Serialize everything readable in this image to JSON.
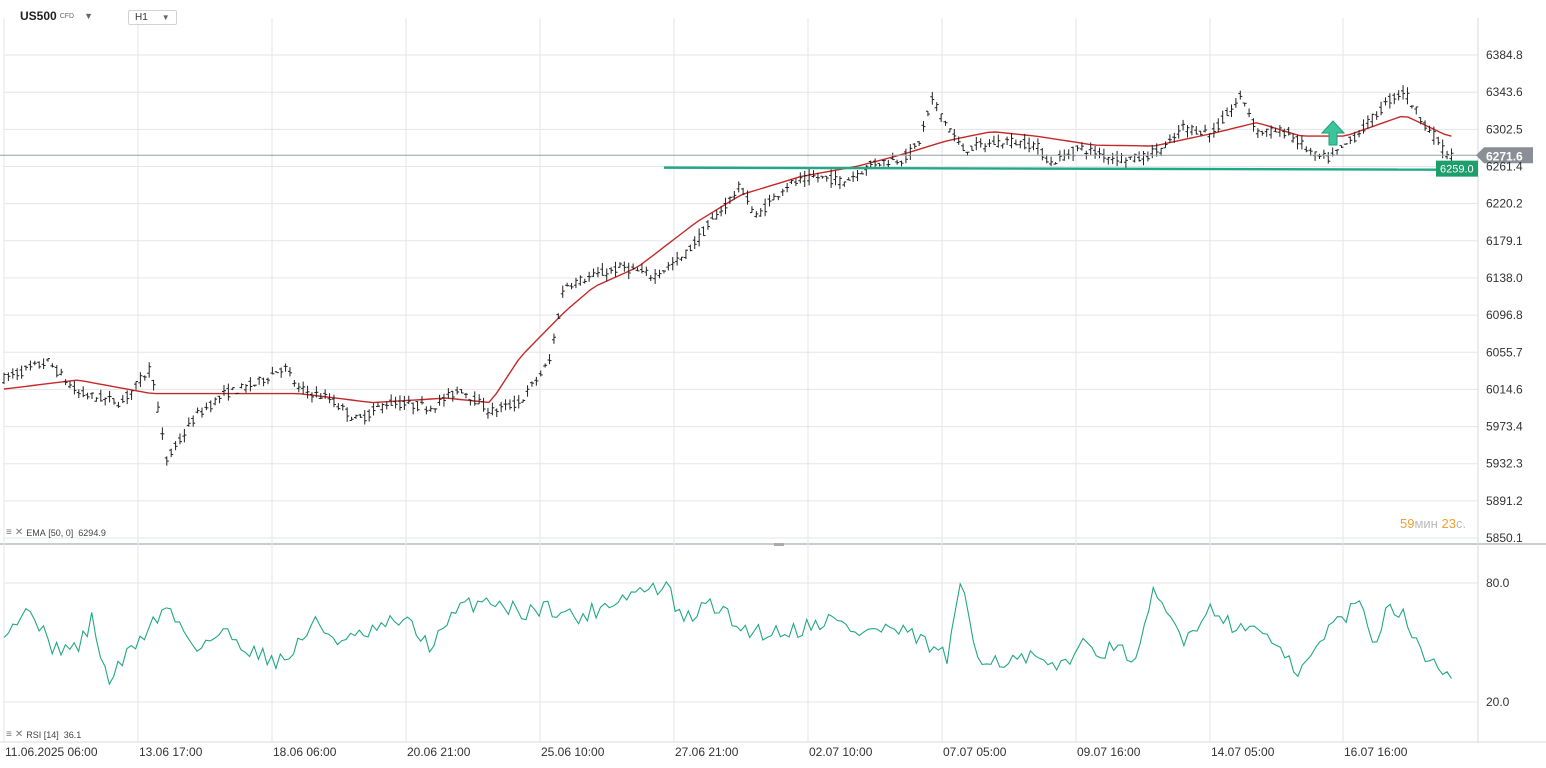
{
  "header": {
    "symbol": "US500",
    "symbol_suffix": "CFD",
    "timeframe": "H1"
  },
  "indicators": {
    "ema_label": "EMA",
    "ema_params": "[50, 0]",
    "ema_value": "6294.9",
    "rsi_label": "RSI",
    "rsi_params": "[14]",
    "rsi_value": "36.1"
  },
  "countdown": {
    "minutes": "59",
    "minutes_unit": "мин",
    "seconds": "23",
    "seconds_unit": "с."
  },
  "colors": {
    "candle": "#222222",
    "ema": "#c62828",
    "support": "#22a884",
    "rsi": "#22a884",
    "arrow": "#3cc49a",
    "grid": "#e3e6ea",
    "price_tag": "#8a8f96",
    "support_tag": "#1e9e6a"
  },
  "icons": {
    "up_arrow": "up-arrow-icon",
    "indicator": "indicator-settings-icon"
  },
  "chart_data": {
    "type": "candlestick",
    "y_ticks": [
      "6384.8",
      "6343.6",
      "6302.5",
      "6261.4",
      "6220.2",
      "6179.1",
      "6138.0",
      "6096.8",
      "6055.7",
      "6014.6",
      "5973.4",
      "5932.3",
      "5891.2",
      "5850.1"
    ],
    "x_ticks": [
      "11.06.2025  06:00",
      "13.06  17:00",
      "18.06  06:00",
      "20.06  21:00",
      "25.06  10:00",
      "27.06  21:00",
      "02.07  10:00",
      "07.07  05:00",
      "09.07  16:00",
      "14.07  05:00",
      "16.07  16:00"
    ],
    "ylim": [
      5850.1,
      6384.8
    ],
    "current_price": "6271.6",
    "support_level": "6259.0",
    "price_path": [
      [
        0,
        6027
      ],
      [
        3,
        6045
      ],
      [
        5,
        6010
      ],
      [
        8,
        6000
      ],
      [
        10,
        6040
      ],
      [
        11,
        5935
      ],
      [
        13,
        5985
      ],
      [
        15,
        6010
      ],
      [
        17,
        6020
      ],
      [
        19,
        6040
      ],
      [
        20,
        6015
      ],
      [
        22,
        6005
      ],
      [
        24,
        5980
      ],
      [
        26,
        6000
      ],
      [
        29,
        5995
      ],
      [
        31,
        6015
      ],
      [
        33,
        5990
      ],
      [
        35,
        6000
      ],
      [
        37,
        6045
      ],
      [
        38,
        6130
      ],
      [
        42,
        6150
      ],
      [
        44,
        6140
      ],
      [
        46,
        6160
      ],
      [
        48,
        6200
      ],
      [
        50,
        6240
      ],
      [
        51,
        6205
      ],
      [
        53,
        6240
      ],
      [
        55,
        6250
      ],
      [
        57,
        6245
      ],
      [
        59,
        6265
      ],
      [
        61,
        6270
      ],
      [
        62,
        6285
      ],
      [
        63,
        6335
      ],
      [
        65,
        6280
      ],
      [
        68,
        6290
      ],
      [
        70,
        6285
      ],
      [
        71,
        6265
      ],
      [
        73,
        6282
      ],
      [
        75,
        6272
      ],
      [
        77,
        6270
      ],
      [
        79,
        6285
      ],
      [
        80,
        6305
      ],
      [
        82,
        6298
      ],
      [
        84,
        6340
      ],
      [
        85,
        6300
      ],
      [
        87,
        6300
      ],
      [
        89,
        6272
      ],
      [
        90,
        6270
      ],
      [
        92,
        6300
      ],
      [
        94,
        6335
      ],
      [
        95,
        6345
      ],
      [
        96,
        6318
      ],
      [
        98,
        6273
      ]
    ],
    "ema_path": [
      [
        0,
        6015
      ],
      [
        5,
        6025
      ],
      [
        10,
        6010
      ],
      [
        15,
        6010
      ],
      [
        20,
        6010
      ],
      [
        25,
        6000
      ],
      [
        30,
        6005
      ],
      [
        33,
        6000
      ],
      [
        35,
        6050
      ],
      [
        38,
        6100
      ],
      [
        40,
        6128
      ],
      [
        43,
        6150
      ],
      [
        47,
        6200
      ],
      [
        50,
        6230
      ],
      [
        54,
        6250
      ],
      [
        58,
        6262
      ],
      [
        61,
        6275
      ],
      [
        64,
        6290
      ],
      [
        67,
        6300
      ],
      [
        70,
        6295
      ],
      [
        74,
        6285
      ],
      [
        78,
        6284
      ],
      [
        82,
        6298
      ],
      [
        85,
        6310
      ],
      [
        88,
        6295
      ],
      [
        91,
        6295
      ],
      [
        95,
        6318
      ],
      [
        98,
        6294.9
      ]
    ],
    "rsi_ylim": [
      10,
      90
    ],
    "rsi_ticks": [
      "80.0",
      "20.0"
    ],
    "rsi_path": [
      [
        0,
        57
      ],
      [
        2,
        67
      ],
      [
        3,
        48
      ],
      [
        5,
        47
      ],
      [
        6,
        62
      ],
      [
        7,
        30
      ],
      [
        9,
        50
      ],
      [
        11,
        68
      ],
      [
        13,
        48
      ],
      [
        15,
        55
      ],
      [
        17,
        45
      ],
      [
        19,
        40
      ],
      [
        21,
        60
      ],
      [
        23,
        50
      ],
      [
        25,
        55
      ],
      [
        27,
        62
      ],
      [
        29,
        48
      ],
      [
        31,
        68
      ],
      [
        33,
        72
      ],
      [
        35,
        65
      ],
      [
        37,
        68
      ],
      [
        39,
        62
      ],
      [
        41,
        70
      ],
      [
        43,
        76
      ],
      [
        45,
        78
      ],
      [
        46,
        60
      ],
      [
        48,
        70
      ],
      [
        50,
        57
      ],
      [
        52,
        55
      ],
      [
        54,
        57
      ],
      [
        56,
        62
      ],
      [
        58,
        55
      ],
      [
        60,
        57
      ],
      [
        62,
        52
      ],
      [
        64,
        42
      ],
      [
        65,
        80
      ],
      [
        66,
        44
      ],
      [
        68,
        40
      ],
      [
        70,
        42
      ],
      [
        71,
        35
      ],
      [
        73,
        48
      ],
      [
        75,
        46
      ],
      [
        77,
        43
      ],
      [
        78,
        75
      ],
      [
        80,
        52
      ],
      [
        82,
        68
      ],
      [
        84,
        55
      ],
      [
        85,
        60
      ],
      [
        87,
        40
      ],
      [
        88,
        35
      ],
      [
        90,
        58
      ],
      [
        92,
        70
      ],
      [
        93,
        50
      ],
      [
        94,
        70
      ],
      [
        95,
        65
      ],
      [
        96,
        45
      ],
      [
        98,
        36.1
      ]
    ]
  }
}
